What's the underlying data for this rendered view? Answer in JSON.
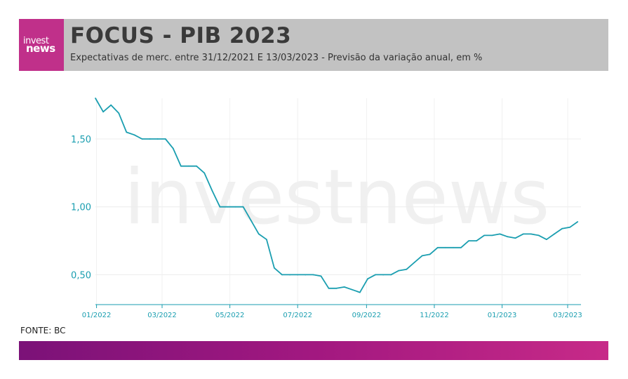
{
  "header": {
    "logo_line1": "invest",
    "logo_line2": "news",
    "title": "FOCUS - PIB 2023",
    "subtitle": "Expectativas de merc. entre 31/12/2021 E 13/03/2023 - Previsão da variação anual, em %"
  },
  "watermark": "investnews",
  "source": "FONTE: BC",
  "colors": {
    "line": "#1a9eb0",
    "header_bg": "#c2c2c2",
    "logo_bg": "#c0308a",
    "bar_start": "#7b1278",
    "bar_end": "#c72a88"
  },
  "chart_data": {
    "type": "line",
    "title": "FOCUS - PIB 2023",
    "xlabel": "",
    "ylabel": "",
    "ylim": [
      0.28,
      1.8
    ],
    "xlim": [
      "2021-12-31",
      "2023-03-13"
    ],
    "yticks": [
      {
        "value": 0.5,
        "label": "0,50"
      },
      {
        "value": 1.0,
        "label": "1,00"
      },
      {
        "value": 1.5,
        "label": "1,50"
      }
    ],
    "xticks": [
      {
        "date": "2022-01-01",
        "label": "01/2022"
      },
      {
        "date": "2022-03-01",
        "label": "03/2022"
      },
      {
        "date": "2022-05-01",
        "label": "05/2022"
      },
      {
        "date": "2022-07-01",
        "label": "07/2022"
      },
      {
        "date": "2022-09-01",
        "label": "09/2022"
      },
      {
        "date": "2022-11-01",
        "label": "11/2022"
      },
      {
        "date": "2023-01-01",
        "label": "01/2023"
      },
      {
        "date": "2023-03-01",
        "label": "03/2023"
      }
    ],
    "grid": true,
    "series": [
      {
        "points": [
          [
            "2021-12-31",
            1.8
          ],
          [
            "2022-01-07",
            1.7
          ],
          [
            "2022-01-14",
            1.75
          ],
          [
            "2022-01-21",
            1.69
          ],
          [
            "2022-01-28",
            1.55
          ],
          [
            "2022-02-04",
            1.53
          ],
          [
            "2022-02-11",
            1.5
          ],
          [
            "2022-02-18",
            1.5
          ],
          [
            "2022-02-25",
            1.5
          ],
          [
            "2022-03-04",
            1.5
          ],
          [
            "2022-03-11",
            1.43
          ],
          [
            "2022-03-18",
            1.3
          ],
          [
            "2022-03-25",
            1.3
          ],
          [
            "2022-04-01",
            1.3
          ],
          [
            "2022-04-08",
            1.25
          ],
          [
            "2022-04-15",
            1.12
          ],
          [
            "2022-04-22",
            1.0
          ],
          [
            "2022-04-29",
            1.0
          ],
          [
            "2022-05-06",
            1.0
          ],
          [
            "2022-05-13",
            1.0
          ],
          [
            "2022-05-20",
            0.9
          ],
          [
            "2022-05-27",
            0.8
          ],
          [
            "2022-06-03",
            0.76
          ],
          [
            "2022-06-10",
            0.55
          ],
          [
            "2022-06-17",
            0.5
          ],
          [
            "2022-06-24",
            0.5
          ],
          [
            "2022-07-01",
            0.5
          ],
          [
            "2022-07-08",
            0.5
          ],
          [
            "2022-07-15",
            0.5
          ],
          [
            "2022-07-22",
            0.49
          ],
          [
            "2022-07-29",
            0.4
          ],
          [
            "2022-08-05",
            0.4
          ],
          [
            "2022-08-12",
            0.41
          ],
          [
            "2022-08-19",
            0.39
          ],
          [
            "2022-08-26",
            0.37
          ],
          [
            "2022-09-02",
            0.47
          ],
          [
            "2022-09-09",
            0.5
          ],
          [
            "2022-09-16",
            0.5
          ],
          [
            "2022-09-23",
            0.5
          ],
          [
            "2022-09-30",
            0.53
          ],
          [
            "2022-10-07",
            0.54
          ],
          [
            "2022-10-14",
            0.59
          ],
          [
            "2022-10-21",
            0.64
          ],
          [
            "2022-10-28",
            0.65
          ],
          [
            "2022-11-04",
            0.7
          ],
          [
            "2022-11-11",
            0.7
          ],
          [
            "2022-11-18",
            0.7
          ],
          [
            "2022-11-25",
            0.7
          ],
          [
            "2022-12-02",
            0.75
          ],
          [
            "2022-12-09",
            0.75
          ],
          [
            "2022-12-16",
            0.79
          ],
          [
            "2022-12-23",
            0.79
          ],
          [
            "2022-12-30",
            0.8
          ],
          [
            "2023-01-06",
            0.78
          ],
          [
            "2023-01-13",
            0.77
          ],
          [
            "2023-01-20",
            0.8
          ],
          [
            "2023-01-27",
            0.8
          ],
          [
            "2023-02-03",
            0.79
          ],
          [
            "2023-02-10",
            0.76
          ],
          [
            "2023-02-17",
            0.8
          ],
          [
            "2023-02-24",
            0.84
          ],
          [
            "2023-03-03",
            0.85
          ],
          [
            "2023-03-10",
            0.89
          ]
        ]
      }
    ]
  }
}
